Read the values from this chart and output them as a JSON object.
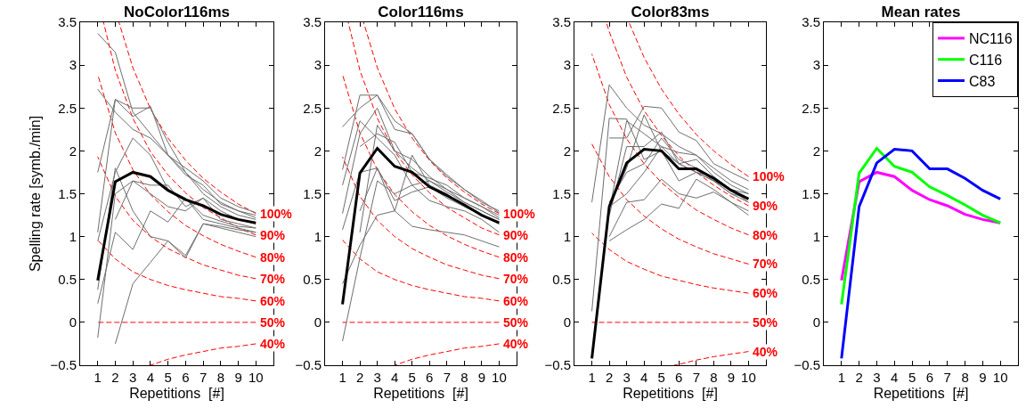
{
  "chart_data": [
    {
      "type": "line",
      "title": "NoColor116ms",
      "xlabel": "Repetitions  [#]",
      "ylabel": "Spelling rate [symb./min]",
      "x": [
        1,
        2,
        3,
        4,
        5,
        6,
        7,
        8,
        9,
        10
      ],
      "xlim": [
        0,
        11
      ],
      "xticks": [
        1,
        2,
        3,
        4,
        5,
        6,
        7,
        8,
        9,
        10
      ],
      "ylim": [
        -0.5,
        3.5
      ],
      "yticks": [
        -0.5,
        0,
        0.5,
        1,
        1.5,
        2,
        2.5,
        3,
        3.5
      ],
      "grid": false,
      "marker": "none",
      "series": [
        {
          "name": "100%",
          "color": "#ff0000",
          "line_style": "dashed",
          "x": [
            2.21,
            3,
            4,
            5,
            6,
            7,
            8,
            9,
            10
          ],
          "values": [
            3.5,
            2.97,
            2.49,
            2.15,
            1.89,
            1.68,
            1.52,
            1.38,
            1.27
          ]
        },
        {
          "name": "90%",
          "color": "#ff0000",
          "line_style": "dashed",
          "x": [
            1.33,
            2,
            3,
            4,
            5,
            6,
            7,
            8,
            9,
            10
          ],
          "values": [
            3.5,
            2.94,
            2.38,
            1.99,
            1.72,
            1.51,
            1.34,
            1.22,
            1.1,
            1.02
          ]
        },
        {
          "name": "80%",
          "color": "#ff0000",
          "line_style": "dashed",
          "values": [
            2.89,
            2.21,
            1.78,
            1.49,
            1.29,
            1.13,
            1.01,
            0.91,
            0.83,
            0.76
          ]
        },
        {
          "name": "70%",
          "color": "#ff0000",
          "line_style": "dashed",
          "values": [
            1.93,
            1.47,
            1.19,
            1,
            0.86,
            0.76,
            0.67,
            0.61,
            0.55,
            0.51
          ]
        },
        {
          "name": "60%",
          "color": "#ff0000",
          "line_style": "dashed",
          "values": [
            0.96,
            0.74,
            0.59,
            0.5,
            0.43,
            0.38,
            0.34,
            0.3,
            0.28,
            0.25
          ]
        },
        {
          "name": "50%",
          "color": "#ff0000",
          "line_style": "dashed",
          "values": [
            0,
            0,
            0,
            0,
            0,
            0,
            0,
            0,
            0,
            0
          ]
        },
        {
          "name": "40%",
          "color": "#ff0000",
          "line_style": "dashed",
          "x": [
            4,
            5,
            6,
            7,
            8,
            9,
            10
          ],
          "values": [
            -0.5,
            -0.43,
            -0.38,
            -0.34,
            -0.3,
            -0.28,
            -0.25
          ]
        },
        {
          "color": "#6e6e6e",
          "values": [
            3.37,
            3.15,
            2.45,
            2.2,
            1.95,
            1.75,
            1.55,
            1.4,
            1.3,
            1.25
          ]
        },
        {
          "color": "#6e6e6e",
          "values": [
            2.72,
            2.45,
            2.25,
            2.15,
            1.95,
            1.8,
            1.65,
            1.45,
            1.35,
            1.28
          ]
        },
        {
          "color": "#6e6e6e",
          "values": [
            1.75,
            2.6,
            2.4,
            2.52,
            1.95,
            1.72,
            1.6,
            1.38,
            1.3,
            1.22
          ]
        },
        {
          "color": "#6e6e6e",
          "values": [
            1.05,
            2.6,
            2.5,
            2.5,
            2.1,
            1.75,
            1.5,
            1.35,
            1.25,
            1.2
          ]
        },
        {
          "color": "#6e6e6e",
          "values": [
            0.95,
            1.75,
            2.15,
            1.95,
            1.55,
            1.45,
            1.25,
            1.18,
            1.12,
            1.1
          ]
        },
        {
          "color": "#6e6e6e",
          "values": [
            0.38,
            1.8,
            1.3,
            1,
            0.95,
            0.78,
            1.15,
            1.1,
            1.05,
            1
          ]
        },
        {
          "color": "#6e6e6e",
          "values": [
            0.22,
            1.05,
            0.85,
            1.3,
            1.17,
            1.45,
            1.2,
            1.15,
            1.1,
            1.05
          ]
        },
        {
          "color": "#6e6e6e",
          "values": [
            -0.18,
            1.5,
            1.65,
            1.5,
            1.35,
            1.3,
            1.45,
            1.2,
            1.15,
            1.1
          ]
        },
        {
          "color": "#6e6e6e",
          "values": [
            null,
            -0.25,
            0.45,
            0.7,
            0.95,
            0.75,
            1.15,
            1.12,
            1.08,
            1.05
          ]
        },
        {
          "color": "#6e6e6e",
          "values": [
            null,
            1.2,
            1.65,
            1.6,
            1.6,
            1.35,
            1.45,
            1.3,
            1.2,
            1.15
          ]
        },
        {
          "color": "#000000",
          "values": [
            0.49,
            1.64,
            1.75,
            1.7,
            1.54,
            1.43,
            1.36,
            1.26,
            1.2,
            1.16
          ]
        }
      ]
    },
    {
      "type": "line",
      "title": "Color116ms",
      "xlabel": "Repetitions  [#]",
      "x": [
        1,
        2,
        3,
        4,
        5,
        6,
        7,
        8,
        9,
        10
      ],
      "xlim": [
        0,
        11
      ],
      "xticks": [
        1,
        2,
        3,
        4,
        5,
        6,
        7,
        8,
        9,
        10
      ],
      "ylim": [
        -0.5,
        3.5
      ],
      "yticks": [
        -0.5,
        0,
        0.5,
        1,
        1.5,
        2,
        2.5,
        3,
        3.5
      ],
      "grid": false,
      "marker": "none",
      "series": [
        {
          "name": "100%",
          "color": "#ff0000",
          "line_style": "dashed",
          "x": [
            2.21,
            3,
            4,
            5,
            6,
            7,
            8,
            9,
            10
          ],
          "values": [
            3.5,
            2.97,
            2.49,
            2.15,
            1.89,
            1.68,
            1.52,
            1.38,
            1.27
          ]
        },
        {
          "name": "90%",
          "color": "#ff0000",
          "line_style": "dashed",
          "x": [
            1.33,
            2,
            3,
            4,
            5,
            6,
            7,
            8,
            9,
            10
          ],
          "values": [
            3.5,
            2.94,
            2.38,
            1.99,
            1.72,
            1.51,
            1.34,
            1.22,
            1.1,
            1.02
          ]
        },
        {
          "name": "80%",
          "color": "#ff0000",
          "line_style": "dashed",
          "values": [
            2.89,
            2.21,
            1.78,
            1.49,
            1.29,
            1.13,
            1.01,
            0.91,
            0.83,
            0.76
          ]
        },
        {
          "name": "70%",
          "color": "#ff0000",
          "line_style": "dashed",
          "values": [
            1.93,
            1.47,
            1.19,
            1,
            0.86,
            0.76,
            0.67,
            0.61,
            0.55,
            0.51
          ]
        },
        {
          "name": "60%",
          "color": "#ff0000",
          "line_style": "dashed",
          "values": [
            0.96,
            0.74,
            0.59,
            0.5,
            0.43,
            0.38,
            0.34,
            0.3,
            0.28,
            0.25
          ]
        },
        {
          "name": "50%",
          "color": "#ff0000",
          "line_style": "dashed",
          "values": [
            0,
            0,
            0,
            0,
            0,
            0,
            0,
            0,
            0,
            0
          ]
        },
        {
          "name": "40%",
          "color": "#ff0000",
          "line_style": "dashed",
          "x": [
            4,
            5,
            6,
            7,
            8,
            9,
            10
          ],
          "values": [
            -0.5,
            -0.43,
            -0.38,
            -0.34,
            -0.3,
            -0.28,
            -0.25
          ]
        },
        {
          "color": "#6e6e6e",
          "values": [
            2.28,
            2.5,
            2.65,
            2.35,
            2.2,
            1.9,
            1.72,
            1.55,
            1.4,
            1.3
          ]
        },
        {
          "color": "#6e6e6e",
          "values": [
            1.78,
            2.65,
            2.65,
            2.25,
            2.2,
            1.9,
            1.7,
            1.55,
            1.42,
            1.28
          ]
        },
        {
          "color": "#6e6e6e",
          "values": [
            1.6,
            2.35,
            2.15,
            1.95,
            1.6,
            1.65,
            1.55,
            1.45,
            1.35,
            1.25
          ]
        },
        {
          "color": "#6e6e6e",
          "values": [
            1.27,
            2.2,
            2.5,
            2,
            1.9,
            1.7,
            1.55,
            1.4,
            1.3,
            1.2
          ]
        },
        {
          "color": "#6e6e6e",
          "values": [
            1.08,
            1.75,
            1.8,
            1.3,
            1.95,
            1.6,
            1.5,
            1.35,
            1.25,
            1.15
          ]
        },
        {
          "color": "#6e6e6e",
          "values": [
            0.45,
            0.9,
            1.25,
            1.3,
            1.12,
            1.08,
            1.05,
            1.02,
            0.95,
            0.88
          ]
        },
        {
          "color": "#6e6e6e",
          "values": [
            -0.22,
            0.75,
            1.65,
            1.5,
            1.6,
            1.42,
            1.35,
            1.3,
            1.2,
            1.05
          ]
        },
        {
          "color": "#6e6e6e",
          "values": [
            null,
            1.3,
            1.8,
            1.42,
            1.52,
            1.58,
            1.45,
            1.35,
            1.25,
            1.15
          ]
        },
        {
          "color": "#6e6e6e",
          "values": [
            null,
            1.05,
            2.3,
            2,
            1.8,
            1.65,
            1.52,
            1.4,
            1.3,
            1.2
          ]
        },
        {
          "color": "#6e6e6e",
          "values": [
            null,
            2.05,
            2.2,
            2.1,
            1.75,
            1.68,
            1.6,
            1.45,
            1.35,
            1.22
          ]
        },
        {
          "color": "#000000",
          "values": [
            0.21,
            1.74,
            2.03,
            1.82,
            1.75,
            1.58,
            1.48,
            1.37,
            1.25,
            1.16
          ]
        }
      ]
    },
    {
      "type": "line",
      "title": "Color83ms",
      "xlabel": "Repetitions  [#]",
      "x": [
        1,
        2,
        3,
        4,
        5,
        6,
        7,
        8,
        9,
        10
      ],
      "xlim": [
        0,
        11
      ],
      "xticks": [
        1,
        2,
        3,
        4,
        5,
        6,
        7,
        8,
        9,
        10
      ],
      "ylim": [
        -0.5,
        3.5
      ],
      "yticks": [
        -0.5,
        0,
        0.5,
        1,
        1.5,
        2,
        2.5,
        3,
        3.5
      ],
      "grid": false,
      "marker": "none",
      "series": [
        {
          "name": "100%",
          "color": "#ff0000",
          "line_style": "dashed",
          "x": [
            3.13,
            4,
            5,
            6,
            7,
            8,
            9,
            10
          ],
          "values": [
            3.5,
            3.09,
            2.72,
            2.43,
            2.19,
            2,
            1.84,
            1.7
          ]
        },
        {
          "name": "90%",
          "color": "#ff0000",
          "line_style": "dashed",
          "x": [
            1.83,
            2,
            3,
            4,
            5,
            6,
            7,
            8,
            9,
            10
          ],
          "values": [
            3.5,
            3.39,
            2.86,
            2.47,
            2.18,
            1.94,
            1.75,
            1.6,
            1.47,
            1.36
          ]
        },
        {
          "name": "80%",
          "color": "#ff0000",
          "line_style": "dashed",
          "values": [
            3.13,
            2.54,
            2.14,
            1.85,
            1.63,
            1.46,
            1.31,
            1.2,
            1.1,
            1.02
          ]
        },
        {
          "name": "70%",
          "color": "#ff0000",
          "line_style": "dashed",
          "values": [
            2.08,
            1.7,
            1.43,
            1.24,
            1.09,
            0.97,
            0.88,
            0.8,
            0.74,
            0.68
          ]
        },
        {
          "name": "60%",
          "color": "#ff0000",
          "line_style": "dashed",
          "values": [
            1.04,
            0.85,
            0.71,
            0.62,
            0.54,
            0.49,
            0.44,
            0.4,
            0.37,
            0.34
          ]
        },
        {
          "name": "50%",
          "color": "#ff0000",
          "line_style": "dashed",
          "values": [
            0,
            0,
            0,
            0,
            0,
            0,
            0,
            0,
            0,
            0
          ]
        },
        {
          "name": "40%",
          "color": "#ff0000",
          "line_style": "dashed",
          "x": [
            5.73,
            6,
            7,
            8,
            9,
            10
          ],
          "values": [
            -0.5,
            -0.49,
            -0.44,
            -0.4,
            -0.37,
            -0.34
          ]
        },
        {
          "color": "#6e6e6e",
          "values": [
            1.4,
            2.77,
            2.5,
            2.3,
            2.2,
            2.05,
            1.95,
            1.8,
            1.65,
            1.55
          ]
        },
        {
          "color": "#6e6e6e",
          "values": [
            0.13,
            2.38,
            2.37,
            1.9,
            2,
            1.85,
            1.9,
            1.7,
            1.55,
            1.5
          ]
        },
        {
          "color": "#6e6e6e",
          "values": [
            null,
            2.15,
            2.15,
            2.52,
            2.5,
            2.22,
            2.12,
            1.85,
            1.75,
            1.65
          ]
        },
        {
          "color": "#6e6e6e",
          "values": [
            null,
            1.3,
            2.35,
            2.2,
            2.05,
            1.98,
            1.95,
            1.75,
            1.6,
            1.5
          ]
        },
        {
          "color": "#6e6e6e",
          "values": [
            null,
            1.35,
            1.8,
            2.42,
            2,
            1.65,
            1.75,
            1.65,
            1.55,
            1.45
          ]
        },
        {
          "color": "#6e6e6e",
          "values": [
            null,
            0.95,
            1.08,
            1.2,
            1.38,
            1.33,
            1.67,
            1.55,
            1.4,
            1.3
          ]
        },
        {
          "color": "#6e6e6e",
          "values": [
            null,
            1,
            1.4,
            1.43,
            1.67,
            1.5,
            1.45,
            1.52,
            1.4,
            1.25
          ]
        },
        {
          "color": "#6e6e6e",
          "values": [
            null,
            1.35,
            1.5,
            1.75,
            2.05,
            1.85,
            1.75,
            1.7,
            1.55,
            1.4
          ]
        },
        {
          "color": "#6e6e6e",
          "values": [
            null,
            1.25,
            2.05,
            2.05,
            2.22,
            1.85,
            1.75,
            1.65,
            1.5,
            1.45
          ]
        },
        {
          "color": "#6e6e6e",
          "values": [
            null,
            1.4,
            1.75,
            1.85,
            2.15,
            1.9,
            1.8,
            1.65,
            1.5,
            1.4
          ]
        },
        {
          "color": "#000000",
          "values": [
            -0.42,
            1.35,
            1.86,
            2.02,
            2,
            1.79,
            1.79,
            1.68,
            1.54,
            1.44
          ]
        }
      ]
    },
    {
      "type": "line",
      "title": "Mean rates",
      "xlabel": "Repetitions  [#]",
      "x": [
        1,
        2,
        3,
        4,
        5,
        6,
        7,
        8,
        9,
        10
      ],
      "xlim": [
        0,
        11
      ],
      "xticks": [
        1,
        2,
        3,
        4,
        5,
        6,
        7,
        8,
        9,
        10
      ],
      "ylim": [
        -0.5,
        3.5
      ],
      "yticks": [
        -0.5,
        0,
        0.5,
        1,
        1.5,
        2,
        2.5,
        3,
        3.5
      ],
      "grid": false,
      "marker": "none",
      "legend": "top right",
      "series": [
        {
          "name": "NC116",
          "color": "#ff00ff",
          "values": [
            0.49,
            1.64,
            1.75,
            1.7,
            1.54,
            1.43,
            1.36,
            1.26,
            1.2,
            1.16
          ]
        },
        {
          "name": "C116",
          "color": "#00ff00",
          "values": [
            0.21,
            1.74,
            2.03,
            1.82,
            1.75,
            1.58,
            1.48,
            1.37,
            1.25,
            1.16
          ]
        },
        {
          "name": "C83",
          "color": "#0000ff",
          "values": [
            -0.42,
            1.35,
            1.86,
            2.02,
            2,
            1.79,
            1.79,
            1.68,
            1.54,
            1.44
          ]
        }
      ]
    }
  ]
}
